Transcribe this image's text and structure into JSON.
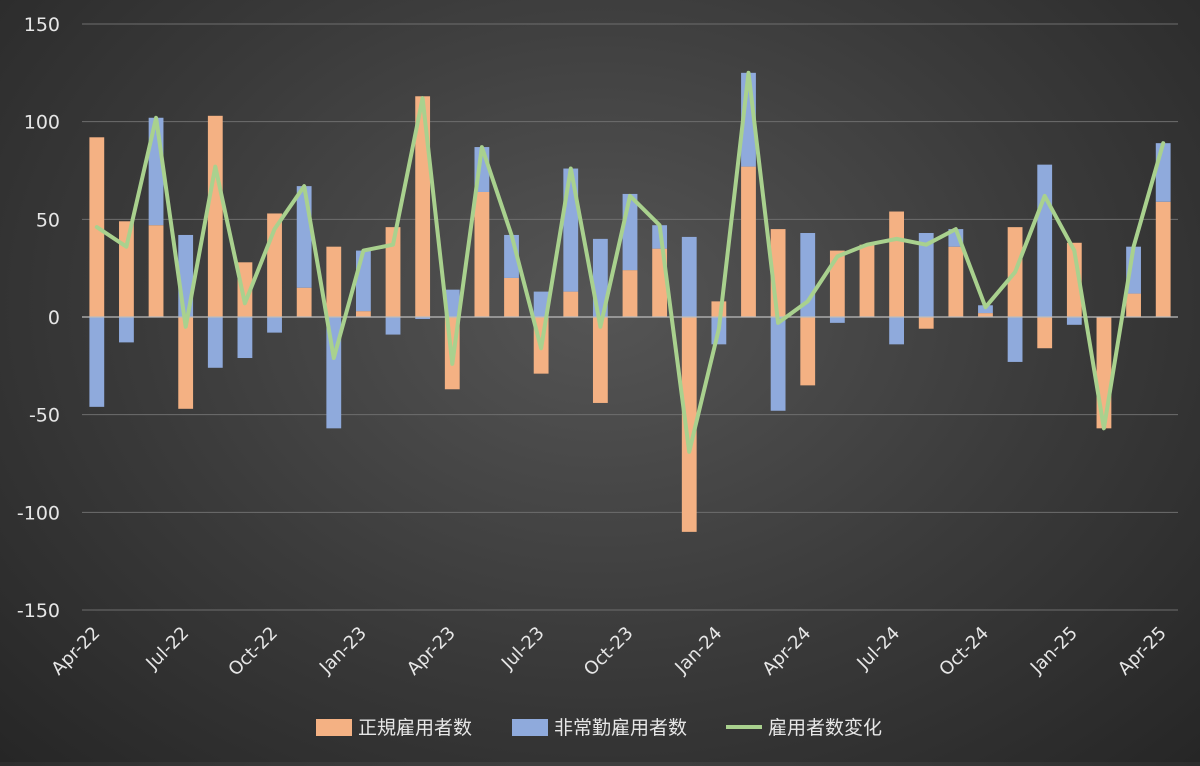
{
  "chart_data": {
    "type": "bar",
    "stacked": true,
    "categories": [
      "Apr-22",
      "May-22",
      "Jun-22",
      "Jul-22",
      "Aug-22",
      "Sep-22",
      "Oct-22",
      "Nov-22",
      "Dec-22",
      "Jan-23",
      "Feb-23",
      "Mar-23",
      "Apr-23",
      "May-23",
      "Jun-23",
      "Jul-23",
      "Aug-23",
      "Sep-23",
      "Oct-23",
      "Nov-23",
      "Dec-23",
      "Jan-24",
      "Feb-24",
      "Mar-24",
      "Apr-24",
      "May-24",
      "Jun-24",
      "Jul-24",
      "Aug-24",
      "Sep-24",
      "Oct-24",
      "Nov-24",
      "Dec-24",
      "Jan-25",
      "Feb-25",
      "Mar-25",
      "Apr-25"
    ],
    "x_tick_labels": [
      "Apr-22",
      "Jul-22",
      "Oct-22",
      "Jan-23",
      "Apr-23",
      "Jul-23",
      "Oct-23",
      "Jan-24",
      "Apr-24",
      "Jul-24",
      "Oct-24",
      "Jan-25",
      "Apr-25"
    ],
    "series": [
      {
        "name": "正規雇用者数",
        "type": "bar",
        "color": "#f4b183",
        "values": [
          92,
          49,
          47,
          -47,
          103,
          28,
          53,
          15,
          36,
          3,
          46,
          113,
          -37,
          64,
          20,
          -29,
          13,
          -44,
          24,
          35,
          -110,
          8,
          77,
          45,
          -35,
          34,
          37,
          54,
          -6,
          36,
          2,
          46,
          -16,
          38,
          -57,
          12,
          59
        ]
      },
      {
        "name": "非常勤雇用者数",
        "type": "bar",
        "color": "#8faadc",
        "values": [
          -46,
          -13,
          55,
          42,
          -26,
          -21,
          -8,
          52,
          -57,
          31,
          -9,
          -1,
          14,
          23,
          22,
          13,
          63,
          40,
          39,
          12,
          41,
          -14,
          48,
          -48,
          43,
          -3,
          0,
          -14,
          43,
          9,
          4,
          -23,
          78,
          -4,
          0,
          24,
          30
        ]
      },
      {
        "name": "雇用者数変化",
        "type": "line",
        "color": "#a9d18e",
        "values": [
          46,
          36,
          102,
          -5,
          77,
          7,
          45,
          67,
          -21,
          34,
          37,
          112,
          -24,
          87,
          42,
          -16,
          76,
          -5,
          62,
          47,
          -69,
          -6,
          125,
          -3,
          8,
          31,
          37,
          40,
          37,
          45,
          5,
          23,
          62,
          34,
          -57,
          36,
          89
        ]
      }
    ],
    "ylim": [
      -150,
      150
    ],
    "yticks": [
      -150,
      -100,
      -50,
      0,
      50,
      100,
      150
    ],
    "grid": true,
    "legend_position": "bottom"
  }
}
